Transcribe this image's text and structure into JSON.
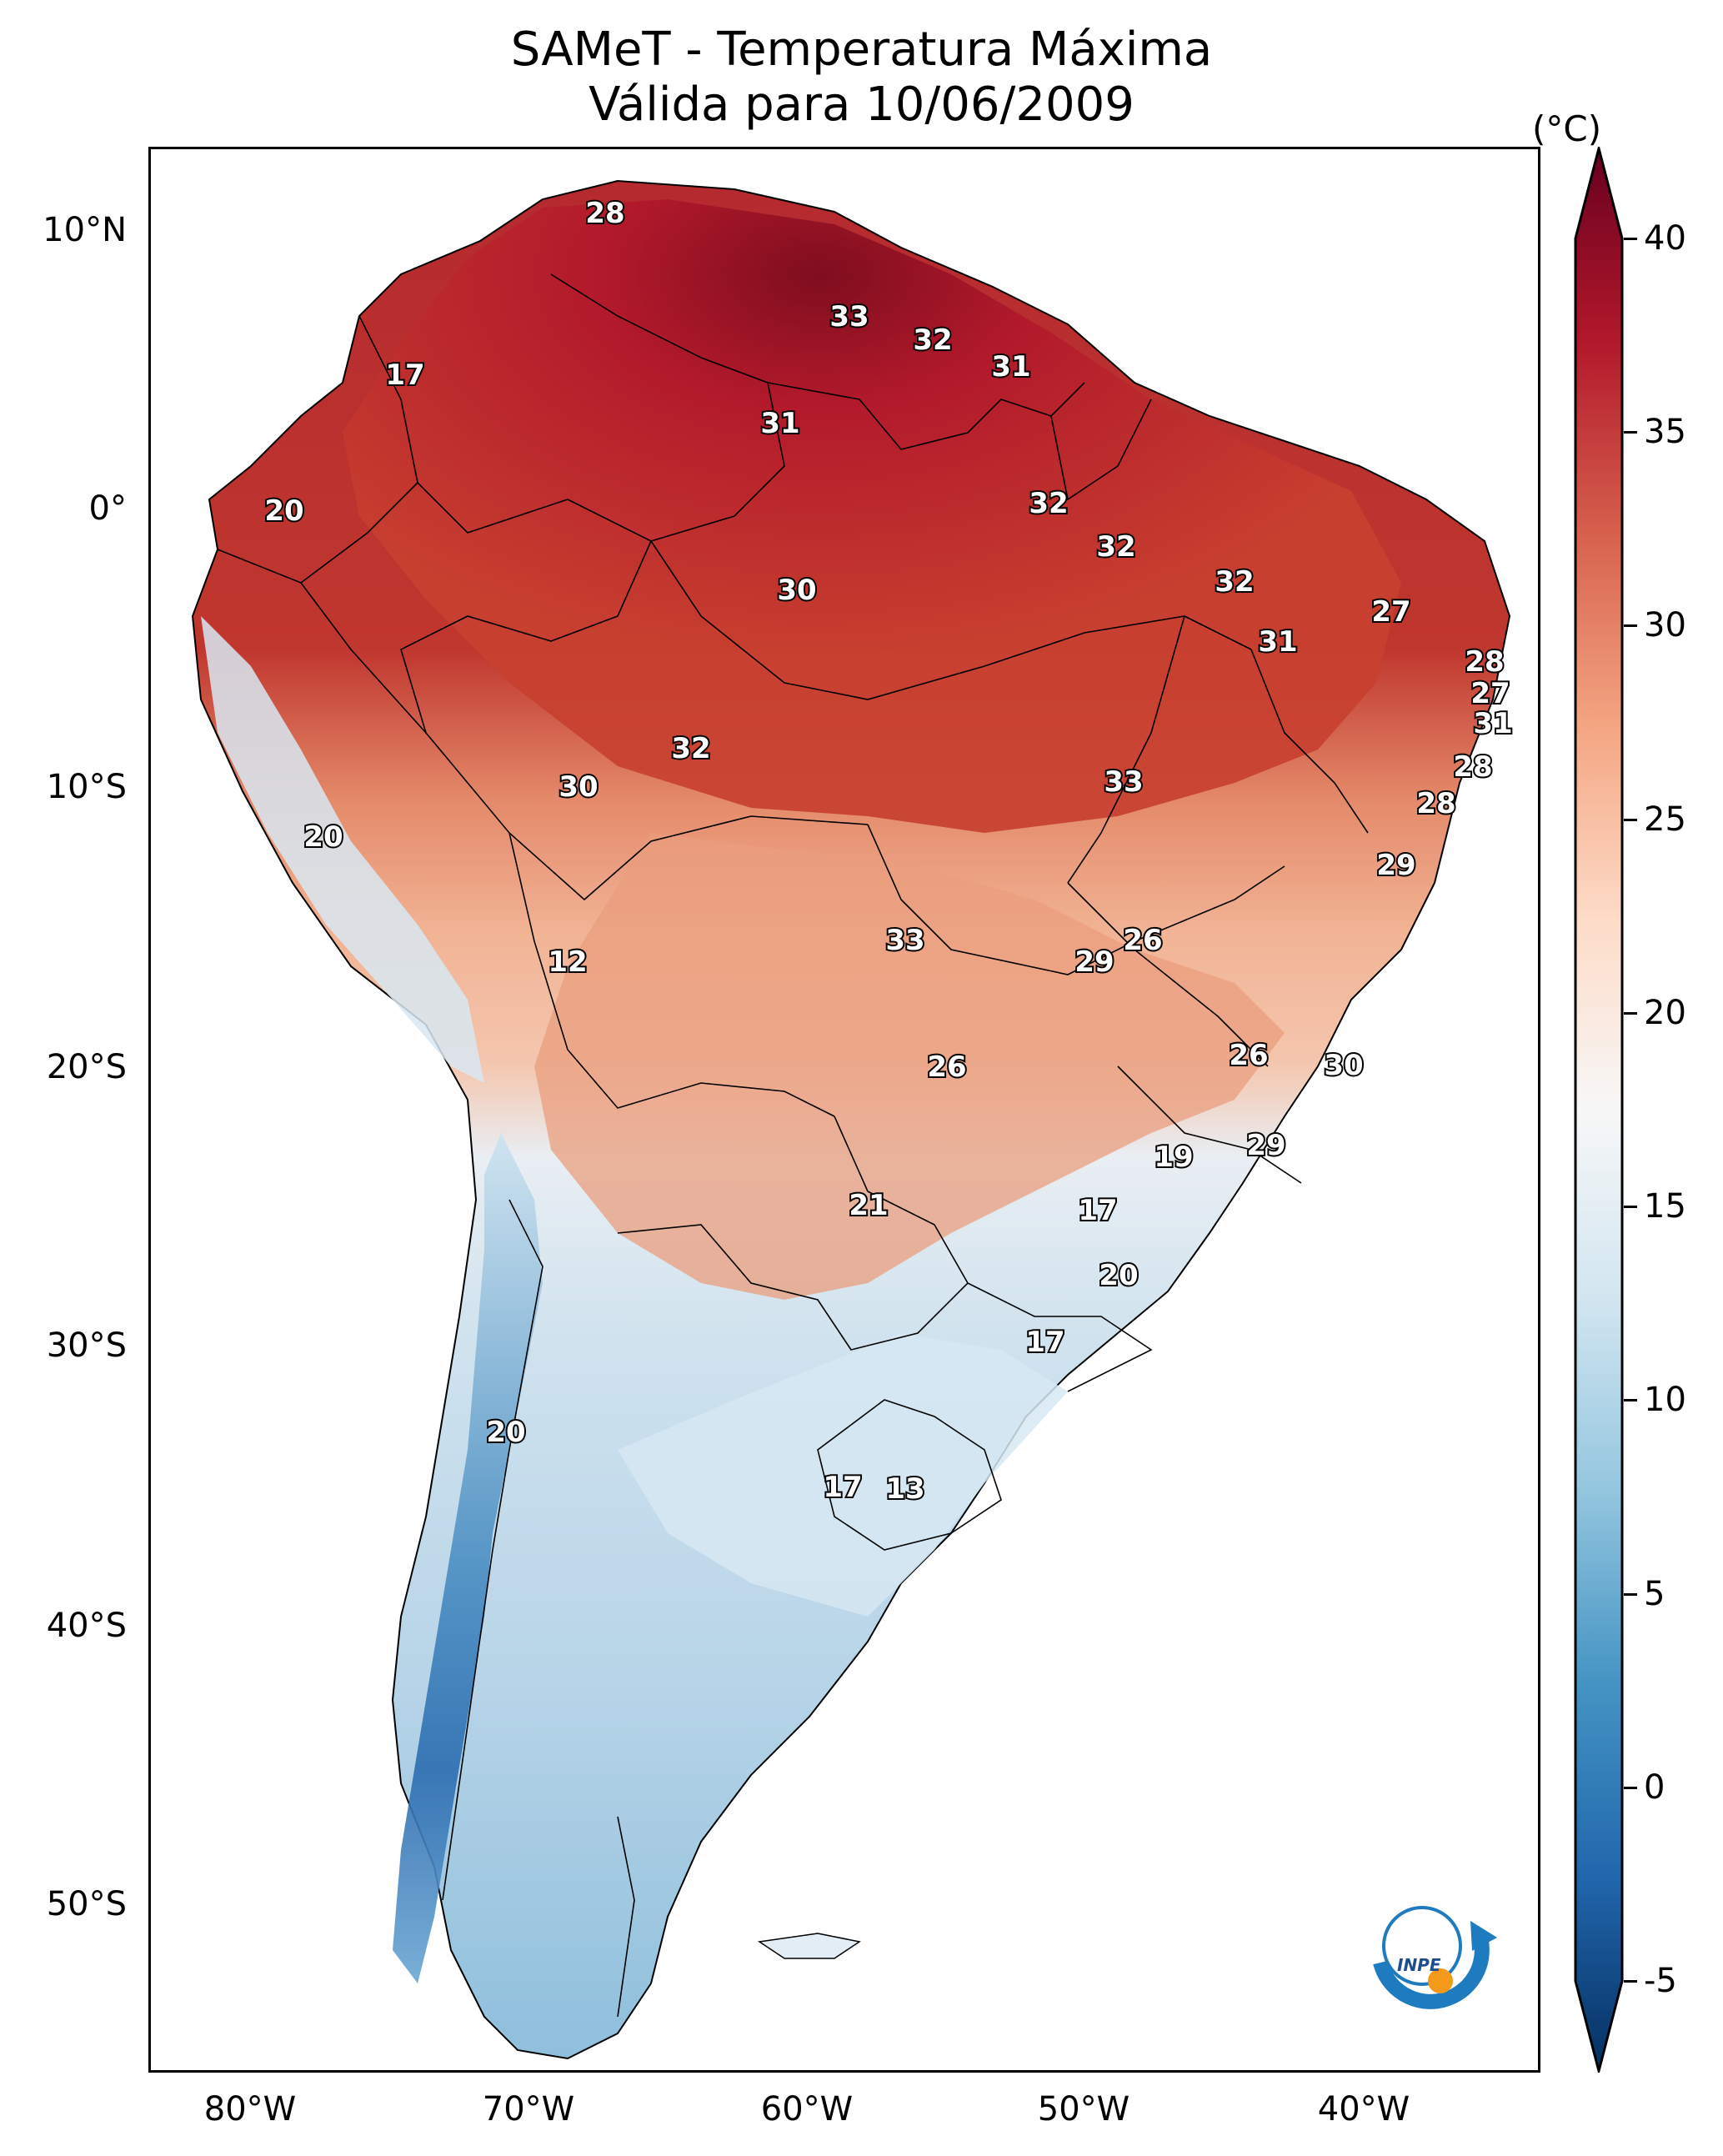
{
  "title": {
    "line1": "SAMeT - Temperatura Máxima",
    "line2": "Válida para 10/06/2009"
  },
  "map": {
    "lat_ticks": [
      "10°N",
      "0°",
      "10°S",
      "20°S",
      "30°S",
      "40°S",
      "50°S"
    ],
    "lon_ticks": [
      "80°W",
      "70°W",
      "60°W",
      "50°W",
      "40°W"
    ],
    "station_labels": [
      "28",
      "33",
      "32",
      "31",
      "17",
      "31",
      "20",
      "32",
      "32",
      "32",
      "30",
      "27",
      "31",
      "28",
      "27",
      "31",
      "32",
      "30",
      "33",
      "28",
      "20",
      "28",
      "29",
      "12",
      "33",
      "26",
      "29",
      "26",
      "30",
      "26",
      "29",
      "19",
      "21",
      "17",
      "20",
      "17",
      "20",
      "17",
      "13"
    ],
    "logo_text": "INPE"
  },
  "colorbar": {
    "unit": "(°C)",
    "ticks": [
      "40",
      "35",
      "30",
      "25",
      "20",
      "15",
      "10",
      "5",
      "0",
      "-5"
    ],
    "range": [
      -5,
      40
    ],
    "colors": [
      "#053061",
      "#2166ac",
      "#4393c3",
      "#92c5de",
      "#d1e5f0",
      "#f7f7f7",
      "#fddbc7",
      "#f4a582",
      "#d6604d",
      "#b2182b",
      "#67001f"
    ]
  }
}
